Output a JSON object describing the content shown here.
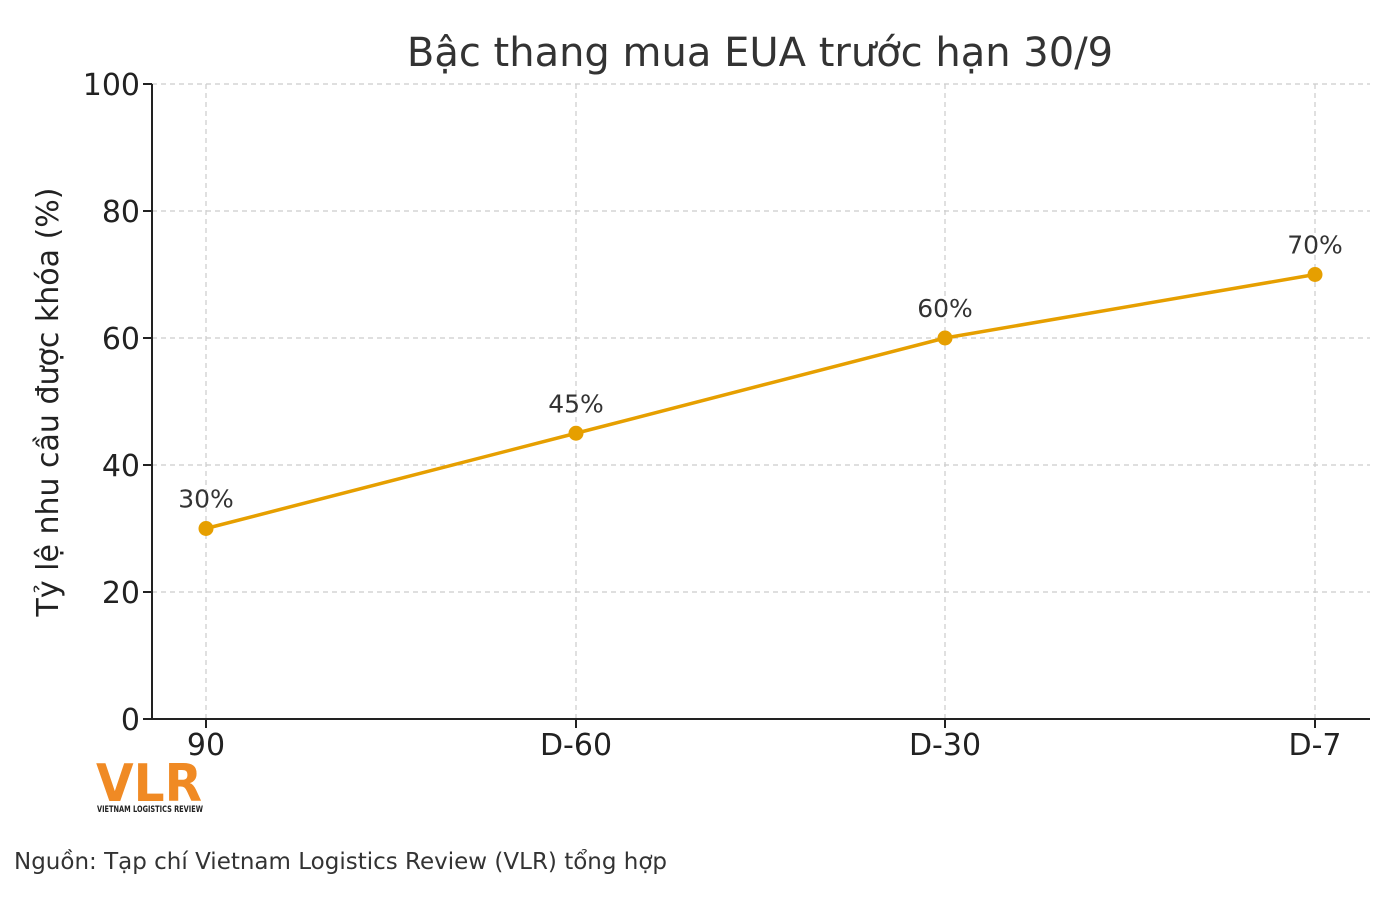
{
  "chart_data": {
    "type": "line",
    "title": "Bậc thang mua EUA trước hạn 30/9",
    "xlabel": "",
    "ylabel": "Tỷ lệ nhu cầu được khóa (%)",
    "categories": [
      "D-90",
      "D-60",
      "D-30",
      "D-7"
    ],
    "category_tick_labels": [
      "90",
      "D-60",
      "D-30",
      "D-7"
    ],
    "series": [
      {
        "values": [
          30,
          45,
          60,
          70
        ],
        "color": "#E69F00"
      }
    ],
    "data_labels": [
      "30%",
      "45%",
      "60%",
      "70%"
    ],
    "ylim": [
      0,
      100
    ],
    "yticks": [
      0,
      20,
      40,
      60,
      80,
      100
    ],
    "grid": true,
    "grid_style": "dashed",
    "legend": "none"
  },
  "logo": {
    "text": "VLR",
    "subtext": "VIETNAM LOGISTICS REVIEW",
    "color": "#F08A24"
  },
  "source_note": "Nguồn: Tạp chí Vietnam Logistics Review (VLR) tổng hợp"
}
